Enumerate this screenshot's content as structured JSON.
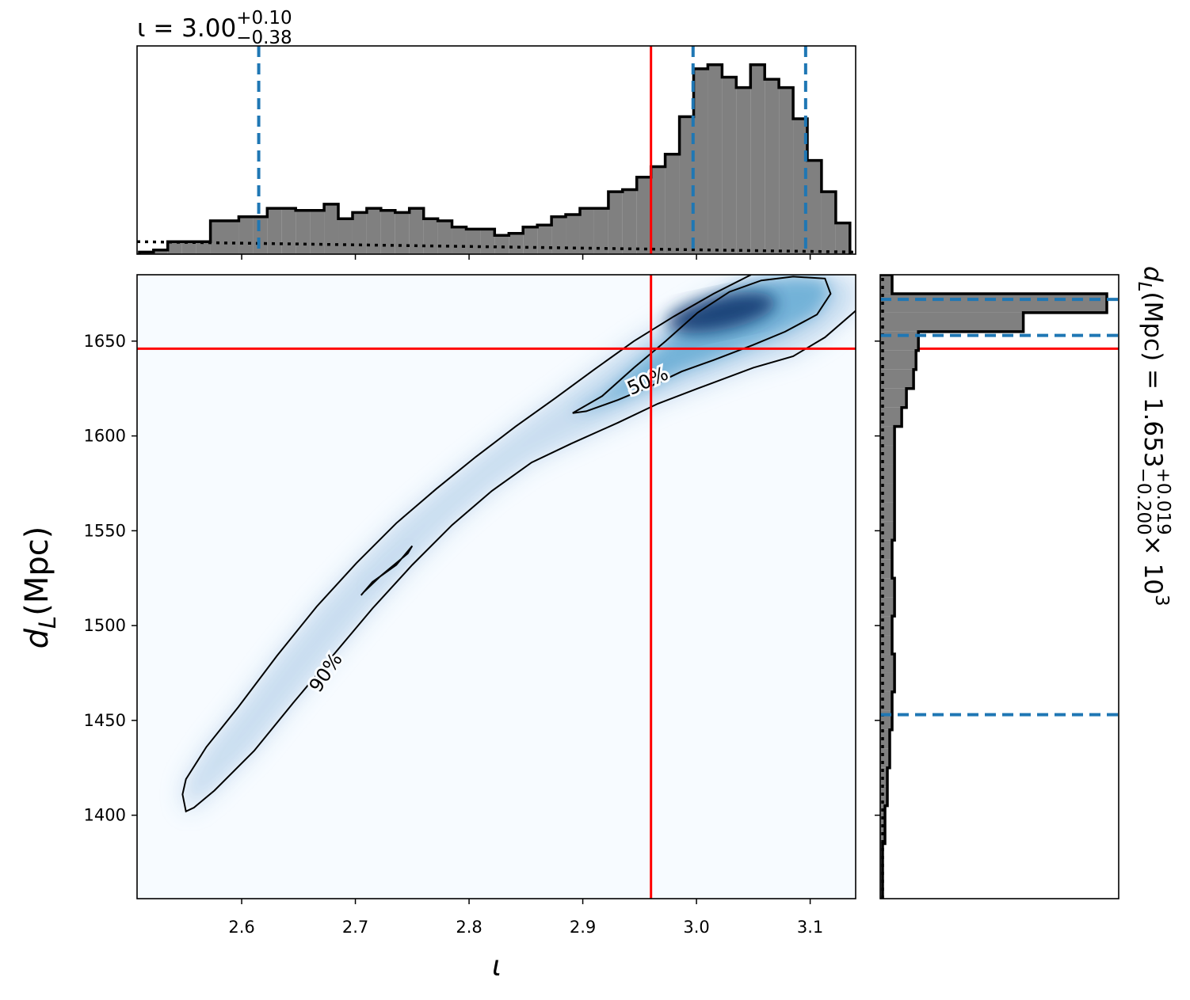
{
  "chart_data": [
    {
      "type": "histogram",
      "orientation": "vertical",
      "title": [
        "ι = 3.00",
        "+0.10",
        "−0.38"
      ],
      "bins": [
        2.51,
        2.5225,
        2.535,
        2.5475,
        2.56,
        2.5725,
        2.585,
        2.5975,
        2.61,
        2.6225,
        2.635,
        2.6475,
        2.66,
        2.6725,
        2.685,
        2.6975,
        2.71,
        2.7225,
        2.735,
        2.7475,
        2.76,
        2.7725,
        2.785,
        2.7975,
        2.81,
        2.8225,
        2.835,
        2.8475,
        2.86,
        2.8725,
        2.885,
        2.8975,
        2.91,
        2.9225,
        2.935,
        2.9475,
        2.96,
        2.9725,
        2.985,
        2.9975,
        3.01,
        3.0225,
        3.035,
        3.0475,
        3.06,
        3.0725,
        3.085,
        3.0975,
        3.11,
        3.1225,
        3.135
      ],
      "values": [
        1,
        2,
        6,
        6,
        6,
        16,
        16,
        18,
        18,
        22,
        22,
        21,
        21,
        24,
        17,
        20,
        22,
        21,
        20,
        22,
        17,
        16,
        13,
        12,
        12,
        9,
        10,
        13,
        14,
        18,
        19,
        22,
        22,
        30,
        31,
        37,
        42,
        48,
        66,
        89,
        91,
        85,
        80,
        91,
        84,
        80,
        65,
        45,
        30,
        15
      ],
      "color": "#808080",
      "ylim": [
        0,
        100
      ],
      "quantiles": [
        2.615,
        2.997,
        3.096
      ],
      "quantile_color": "#1f77b4",
      "prior": {
        "x": [
          2.508,
          3.14
        ],
        "values": [
          6,
          1
        ]
      }
    },
    {
      "type": "density",
      "xlabel": "ι",
      "ylabel": [
        "d",
        "L",
        " (Mpc)"
      ],
      "xlim": [
        2.508,
        3.14
      ],
      "ylim": [
        1356,
        1685
      ],
      "xticks": [
        2.6,
        2.7,
        2.8,
        2.9,
        {
          "value": 3,
          "label": "3.0"
        },
        3.1
      ],
      "yticks": [
        1400,
        1450,
        1500,
        1550,
        1600,
        1650
      ],
      "cmap": "Blues",
      "contours": [
        {
          "label": "90%",
          "x": [
            3.048,
            3.015,
            2.98,
            2.945,
            2.91,
            2.876,
            2.841,
            2.806,
            2.771,
            2.736,
            2.701,
            2.666,
            2.631,
            2.597,
            2.569,
            2.551,
            2.548,
            2.551,
            2.558,
            2.576,
            2.611,
            2.645,
            2.68,
            2.715,
            2.75,
            2.785,
            2.82,
            2.855,
            2.89,
            2.931,
            2.966,
            3.001,
            3.05,
            3.085,
            3.113,
            3.14
          ],
          "y": [
            1685,
            1675,
            1663,
            1650,
            1635,
            1620,
            1605,
            1589,
            1572,
            1554,
            1533,
            1510,
            1484,
            1457,
            1436,
            1419,
            1411,
            1402,
            1404,
            1413,
            1434,
            1459,
            1484,
            1509,
            1532,
            1553,
            1571,
            1586,
            1596,
            1607,
            1617,
            1625,
            1636,
            1642,
            1652,
            1666
          ]
        },
        {
          "label": "50%",
          "x": [
            2.891,
            2.917,
            2.945,
            2.973,
            3.001,
            3.029,
            3.057,
            3.085,
            3.113,
            3.118,
            3.106,
            3.078,
            3.05,
            3.015,
            2.987,
            2.959,
            2.931,
            2.903,
            2.891
          ],
          "y": [
            1612,
            1621,
            1636,
            1650,
            1665,
            1676,
            1682,
            1684,
            1683,
            1675,
            1664,
            1655,
            1648,
            1640,
            1634,
            1626,
            1619,
            1613,
            1612
          ]
        },
        {
          "x": [
            2.705,
            2.715,
            2.736,
            2.75,
            2.746,
            2.722,
            2.708
          ],
          "y": [
            1516,
            1523,
            1532,
            1542,
            1538,
            1526,
            1518
          ]
        }
      ],
      "peak": {
        "x": 3.022,
        "y": 1665
      },
      "truth": {
        "x": 2.96,
        "y": 1646
      },
      "truth_color": "#ff0000"
    },
    {
      "type": "histogram",
      "orientation": "horizontal",
      "title": [
        "d",
        "L",
        " (Mpc) = 1.653",
        "+0.019",
        "−0.200",
        " × 10",
        "3"
      ],
      "bins": [
        1355,
        1365,
        1375,
        1385,
        1395,
        1405,
        1415,
        1425,
        1435,
        1445,
        1455,
        1465,
        1475,
        1485,
        1495,
        1505,
        1515,
        1525,
        1535,
        1545,
        1555,
        1565,
        1575,
        1585,
        1595,
        1605,
        1615,
        1625,
        1635,
        1645,
        1655,
        1665,
        1675,
        1685
      ],
      "values": [
        1,
        1,
        1,
        2,
        2,
        3,
        3,
        4,
        4,
        5,
        5,
        6,
        6,
        5,
        5,
        6,
        6,
        5,
        5,
        6,
        6,
        6,
        6,
        6,
        6,
        9,
        11,
        14,
        15,
        16,
        60,
        95,
        5
      ],
      "color": "#808080",
      "xlim": [
        0,
        100
      ],
      "quantiles": [
        1453,
        1653,
        1672
      ],
      "quantile_color": "#1f77b4",
      "prior": {
        "y": [
          1356,
          1685
        ],
        "values": [
          1,
          1
        ]
      }
    }
  ]
}
